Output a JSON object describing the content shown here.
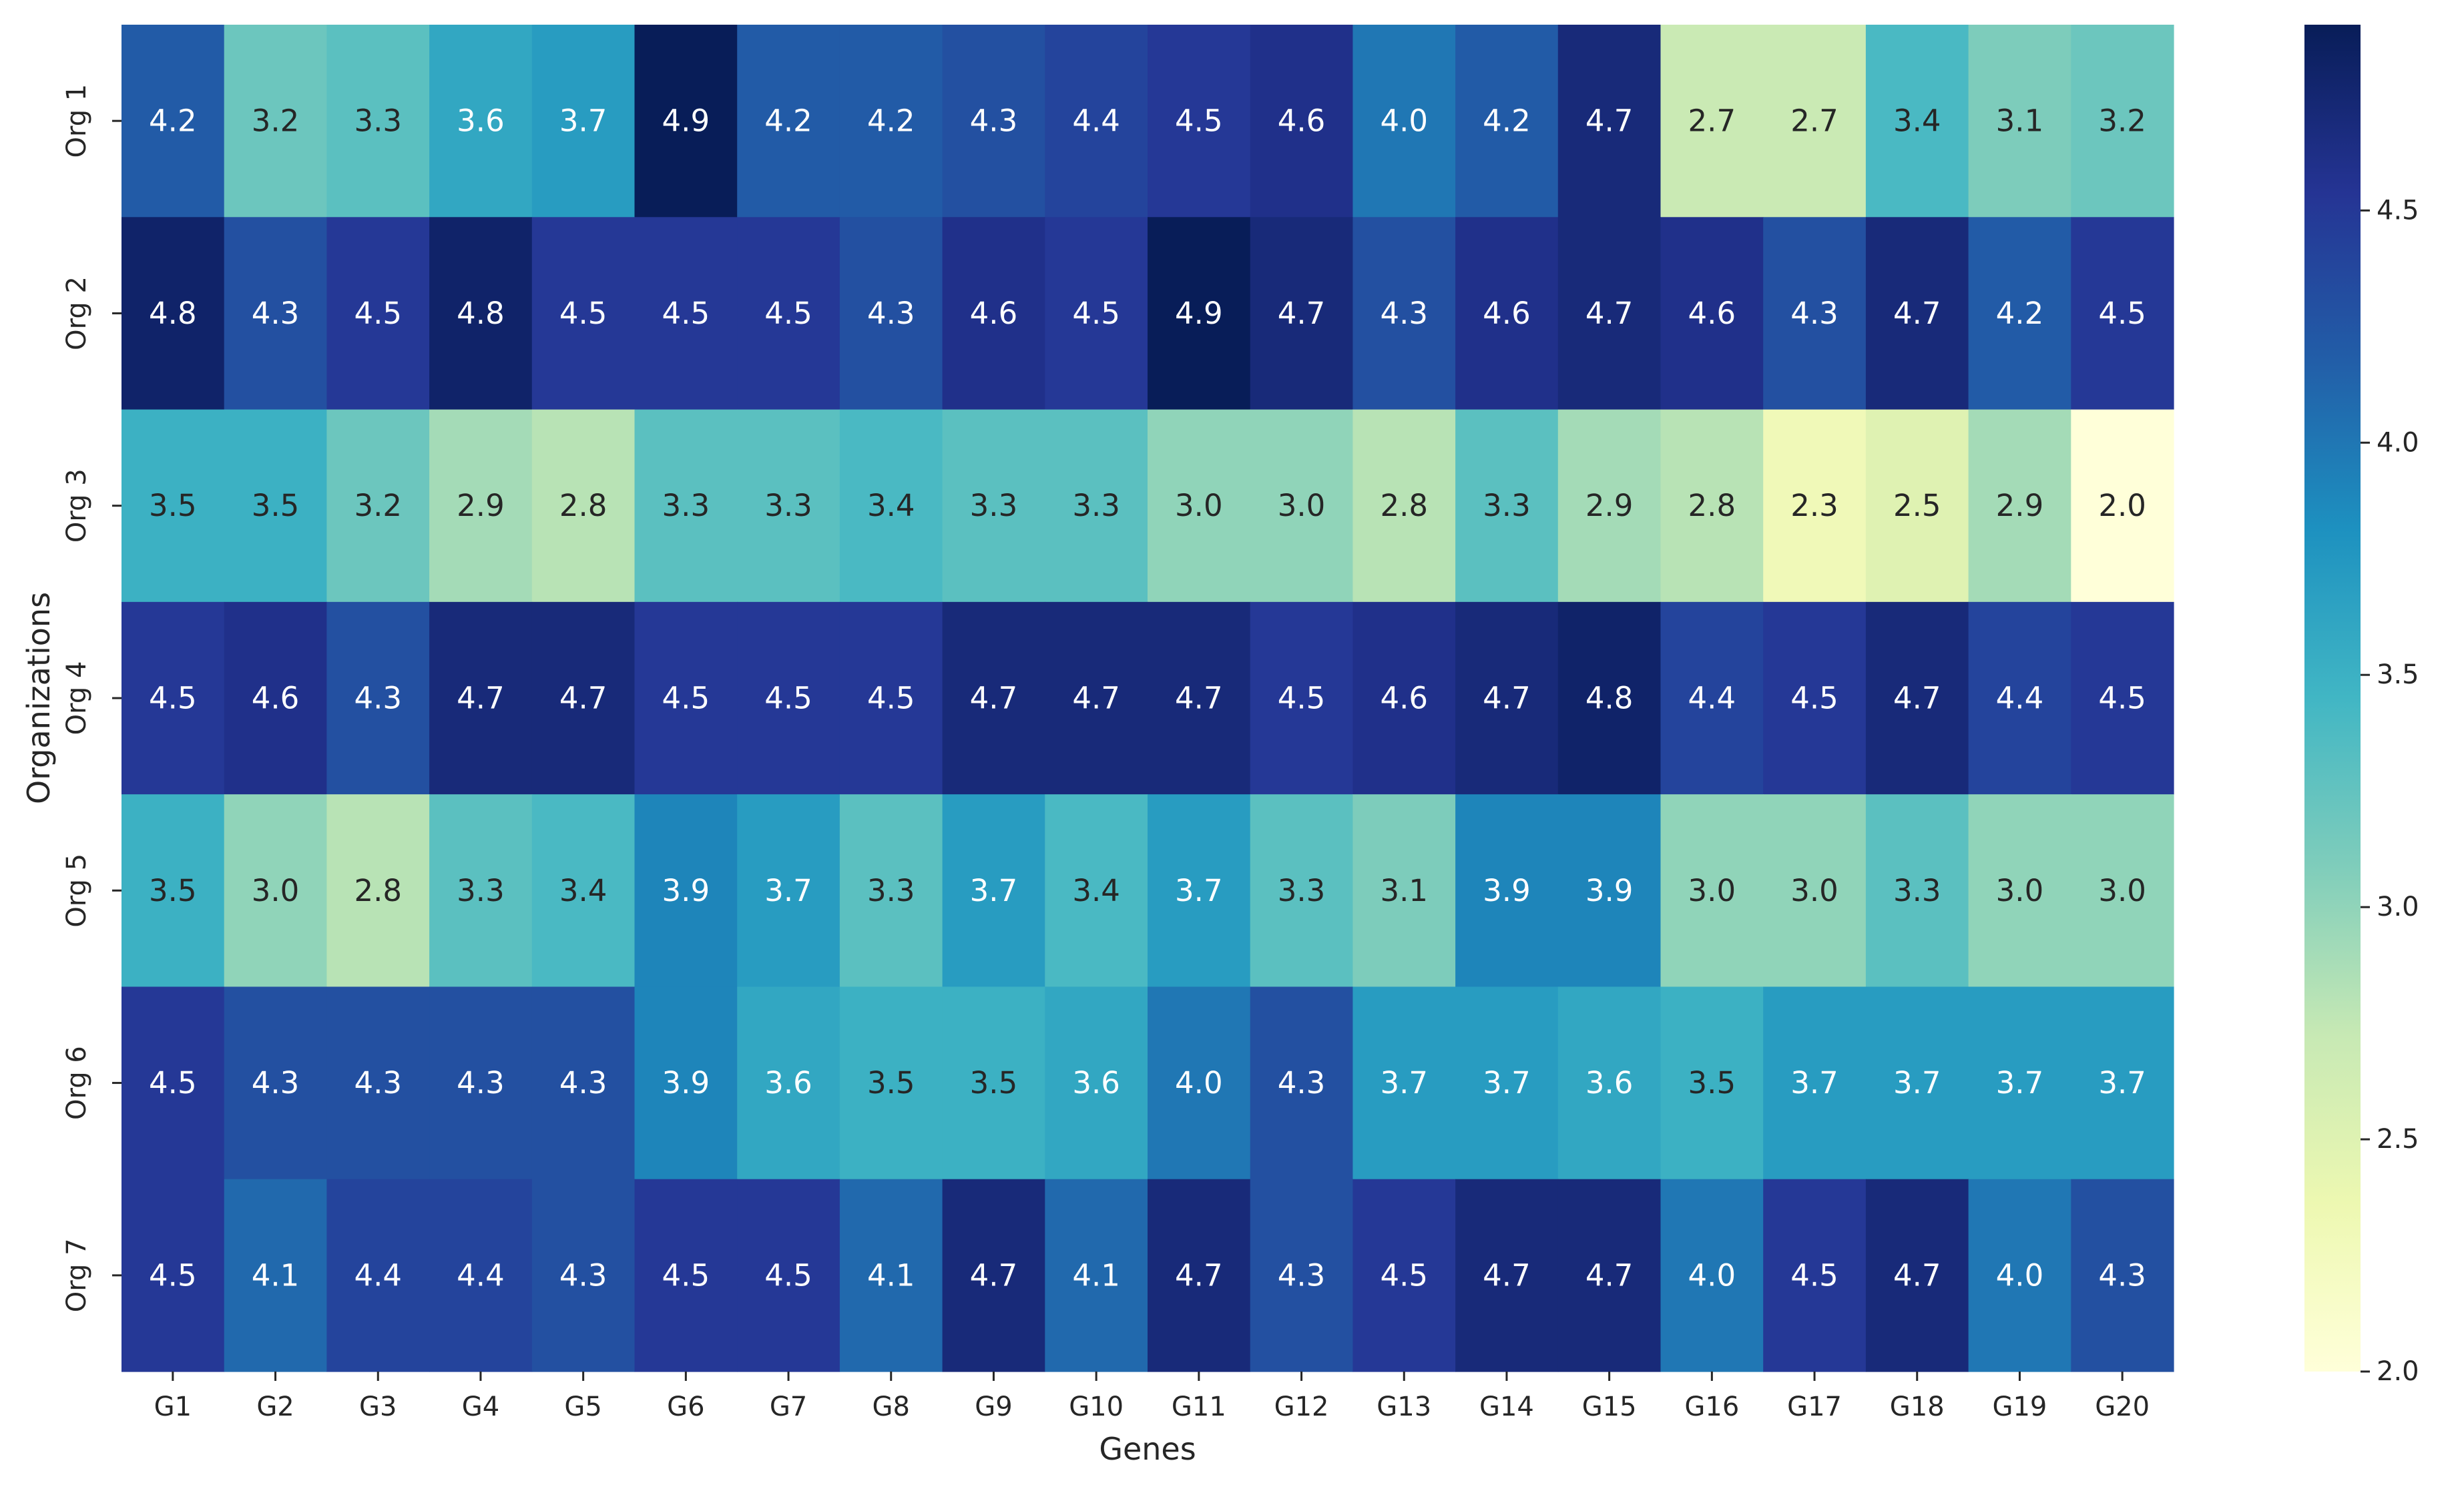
{
  "chart_data": {
    "type": "heatmap",
    "title": "",
    "xlabel": "Genes",
    "ylabel": "Organizations",
    "x_categories": [
      "G1",
      "G2",
      "G3",
      "G4",
      "G5",
      "G6",
      "G7",
      "G8",
      "G9",
      "G10",
      "G11",
      "G12",
      "G13",
      "G14",
      "G15",
      "G16",
      "G17",
      "G18",
      "G19",
      "G20"
    ],
    "y_categories": [
      "Org 1",
      "Org 2",
      "Org 3",
      "Org 4",
      "Org 5",
      "Org 6",
      "Org 7"
    ],
    "values": [
      [
        4.2,
        3.2,
        3.3,
        3.6,
        3.7,
        4.9,
        4.2,
        4.2,
        4.3,
        4.4,
        4.5,
        4.6,
        4.0,
        4.2,
        4.7,
        2.7,
        2.7,
        3.4,
        3.1,
        3.2
      ],
      [
        4.8,
        4.3,
        4.5,
        4.8,
        4.5,
        4.5,
        4.5,
        4.3,
        4.6,
        4.5,
        4.9,
        4.7,
        4.3,
        4.6,
        4.7,
        4.6,
        4.3,
        4.7,
        4.2,
        4.5
      ],
      [
        3.5,
        3.5,
        3.2,
        2.9,
        2.8,
        3.3,
        3.3,
        3.4,
        3.3,
        3.3,
        3.0,
        3.0,
        2.8,
        3.3,
        2.9,
        2.8,
        2.3,
        2.5,
        2.9,
        2.0
      ],
      [
        4.5,
        4.6,
        4.3,
        4.7,
        4.7,
        4.5,
        4.5,
        4.5,
        4.7,
        4.7,
        4.7,
        4.5,
        4.6,
        4.7,
        4.8,
        4.4,
        4.5,
        4.7,
        4.4,
        4.5
      ],
      [
        3.5,
        3.0,
        2.8,
        3.3,
        3.4,
        3.9,
        3.7,
        3.3,
        3.7,
        3.4,
        3.7,
        3.3,
        3.1,
        3.9,
        3.9,
        3.0,
        3.0,
        3.3,
        3.0,
        3.0
      ],
      [
        4.5,
        4.3,
        4.3,
        4.3,
        4.3,
        3.9,
        3.6,
        3.5,
        3.5,
        3.6,
        4.0,
        4.3,
        3.7,
        3.7,
        3.6,
        3.5,
        3.7,
        3.7,
        3.7,
        3.7
      ],
      [
        4.5,
        4.1,
        4.4,
        4.4,
        4.3,
        4.5,
        4.5,
        4.1,
        4.7,
        4.1,
        4.7,
        4.3,
        4.5,
        4.7,
        4.7,
        4.0,
        4.5,
        4.7,
        4.0,
        4.3
      ]
    ],
    "value_range": [
      2.0,
      4.9
    ],
    "colormap": "YlGnBu",
    "colorbar_ticks": [
      "2.0",
      "2.5",
      "3.0",
      "3.5",
      "4.0",
      "4.5"
    ],
    "annotated": true,
    "grid": false,
    "legend": "colorbar-right"
  }
}
